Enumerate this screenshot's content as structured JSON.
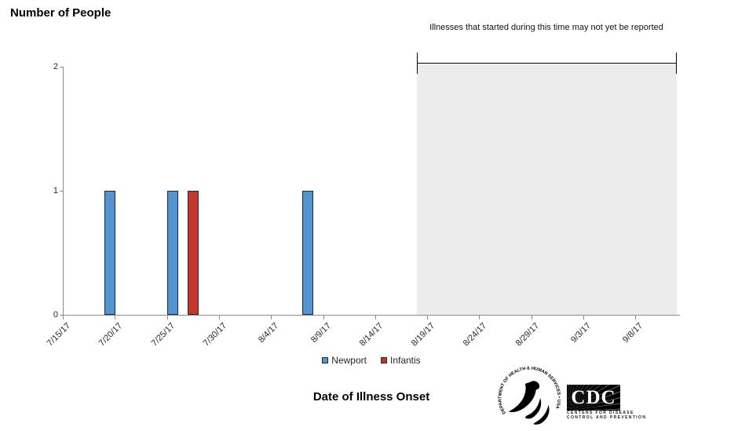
{
  "chart_data": {
    "type": "bar",
    "title": "Number of People",
    "xlabel": "Date of Illness Onset",
    "ylabel": "Number of People",
    "ylim": [
      0,
      2
    ],
    "y_ticks": [
      0,
      1,
      2
    ],
    "x_axis_start": "7/15/17",
    "x_axis_end": "9/12/17",
    "x_tick_interval_days": 5,
    "x_tick_labels": [
      "7/15/17",
      "7/20/17",
      "7/25/17",
      "7/30/17",
      "8/4/17",
      "8/9/17",
      "8/14/17",
      "8/19/17",
      "8/24/17",
      "8/29/17",
      "9/3/17",
      "9/8/17"
    ],
    "grid": false,
    "legend_position": "bottom",
    "series": [
      {
        "name": "Newport",
        "color": "#5494d0",
        "border_color": "#1c2a3a",
        "points": [
          {
            "date": "7/19/17",
            "value": 1
          },
          {
            "date": "7/25/17",
            "value": 1
          },
          {
            "date": "8/7/17",
            "value": 1
          }
        ]
      },
      {
        "name": "Infantis",
        "color": "#c2392b",
        "border_color": "#1c2a3a",
        "points": [
          {
            "date": "7/27/17",
            "value": 1
          }
        ]
      }
    ],
    "shaded_region": {
      "start": "8/18/17",
      "end": "9/12/17",
      "color": "#ececec",
      "label": "Illnesses that started during this time may not yet be reported"
    }
  },
  "logos": {
    "hhs_arc_text": "DEPARTMENT OF HEALTH & HUMAN SERVICES • USA",
    "cdc_acronym": "CDC",
    "cdc_name_line1": "Centers for Disease",
    "cdc_name_line2": "Control and Prevention"
  }
}
